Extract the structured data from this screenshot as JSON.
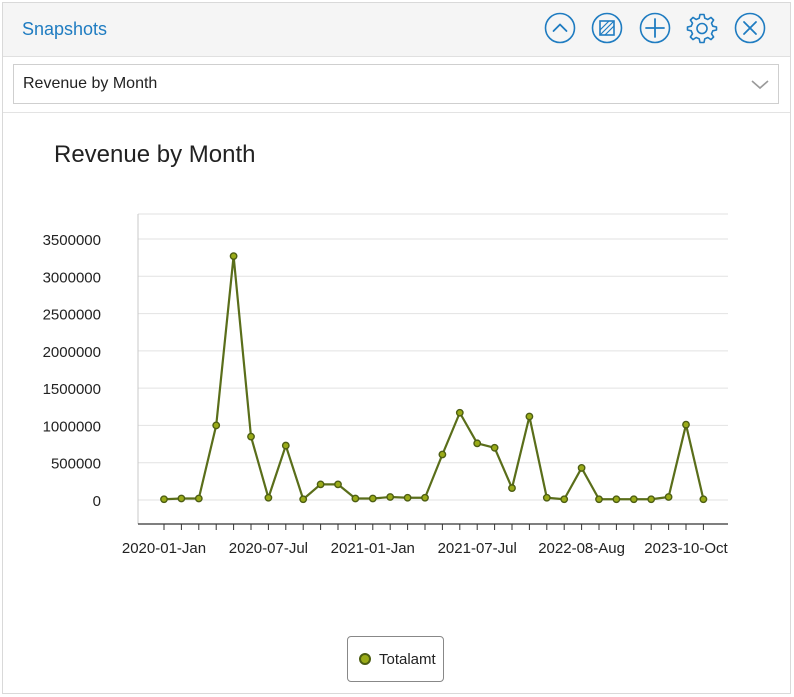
{
  "header": {
    "title": "Snapshots",
    "toolbar": [
      {
        "name": "collapse-up-icon",
        "action": "collapse"
      },
      {
        "name": "no-image-icon",
        "action": "toggle-view"
      },
      {
        "name": "add-icon",
        "action": "add"
      },
      {
        "name": "gear-icon",
        "action": "settings"
      },
      {
        "name": "close-icon",
        "action": "close"
      }
    ]
  },
  "selector": {
    "selected": "Revenue by Month"
  },
  "colors": {
    "accent": "#1f7cc1",
    "line": "#5a6e1a",
    "marker_fill": "#9aab18"
  },
  "chart_data": {
    "type": "line",
    "title": "Revenue by Month",
    "xlabel": "",
    "ylabel": "",
    "ylim": [
      0,
      3500000
    ],
    "yticks": [
      0,
      500000,
      1000000,
      1500000,
      2000000,
      2500000,
      3000000,
      3500000
    ],
    "x_tick_labels": [
      "2020-01-Jan",
      "2020-07-Jul",
      "2021-01-Jan",
      "2021-07-Jul",
      "2022-08-Aug",
      "2023-10-Oct"
    ],
    "grid": true,
    "legend": "bottom-center",
    "series": [
      {
        "name": "Totalamt",
        "values": [
          10000,
          20000,
          20000,
          1000000,
          3270000,
          850000,
          30000,
          730000,
          10000,
          210000,
          210000,
          20000,
          20000,
          40000,
          30000,
          30000,
          610000,
          1170000,
          760000,
          700000,
          160000,
          1120000,
          30000,
          10000,
          430000,
          10000,
          10000,
          10000,
          10000,
          40000,
          1010000,
          10000
        ]
      }
    ]
  }
}
